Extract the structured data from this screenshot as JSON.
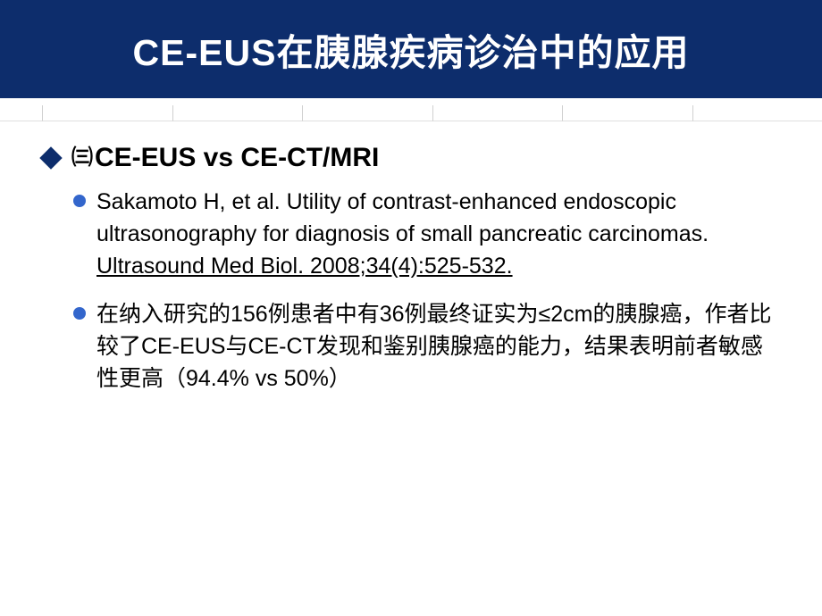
{
  "header": {
    "title": "CE-EUS在胰腺疾病诊治中的应用",
    "background_color": "#0d2d6c",
    "text_color": "#ffffff",
    "title_fontsize": 41
  },
  "divider": {
    "cell_count": 7,
    "border_color": "#d0d0d0"
  },
  "section": {
    "number_symbol": "㈢",
    "heading": "CE-EUS vs CE-CT/MRI",
    "diamond_color": "#0d2d6c",
    "bullet_color": "#3366cc"
  },
  "bullets": [
    {
      "text_plain": "Sakamoto H, et al. Utility of contrast-enhanced endoscopic ultrasonography for diagnosis of small pancreatic carcinomas. ",
      "text_underlined": "Ultrasound Med Biol. 2008;34(4):525-532."
    },
    {
      "text_plain": "在纳入研究的156例患者中有36例最终证实为≤2cm的胰腺癌，作者比较了CE-EUS与CE-CT发现和鉴别胰腺癌的能力，结果表明前者敏感性更高（94.4% vs 50%）",
      "text_underlined": ""
    }
  ],
  "styling": {
    "body_width": 920,
    "body_height": 690,
    "background_color": "#ffffff",
    "heading_fontsize": 30,
    "bullet_fontsize": 25,
    "bullet_lineheight": 36
  }
}
